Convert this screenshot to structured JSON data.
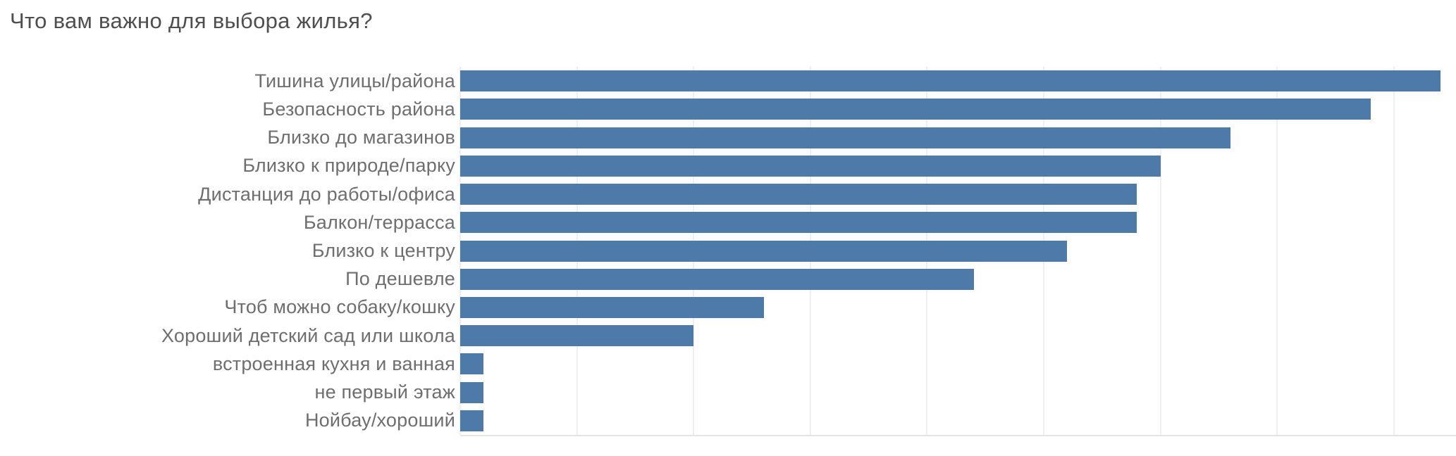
{
  "chart_data": {
    "type": "bar",
    "orientation": "horizontal",
    "title": "Что вам важно для выбора жилья?",
    "categories": [
      "Тишина улицы/района",
      "Безопасность района",
      "Близко до магазинов",
      "Близко к природе/парку",
      "Дистанция до работы/офиса",
      "Балкон/террасса",
      "Близко к центру",
      "По дешевле",
      "Чтоб можно собаку/кошку",
      "Хороший детский сад или школа",
      "встроенная кухня и ванная",
      "не первый этаж",
      "Нойбау/хороший"
    ],
    "values": [
      42,
      39,
      33,
      30,
      29,
      29,
      26,
      22,
      13,
      10,
      1,
      1,
      1
    ],
    "xlabel": "",
    "ylabel": "",
    "xlim": [
      0,
      42.7
    ],
    "gridline_step": 5,
    "axis_tick_labels": "none",
    "legend": "none",
    "grid": "vertical light gray lines",
    "colors": {
      "bar": "#4d7aa8",
      "grid": "#efefef",
      "axis": "#e4e4e4",
      "title_text": "#4e4e4e",
      "label_text": "#6e6e6e"
    }
  }
}
